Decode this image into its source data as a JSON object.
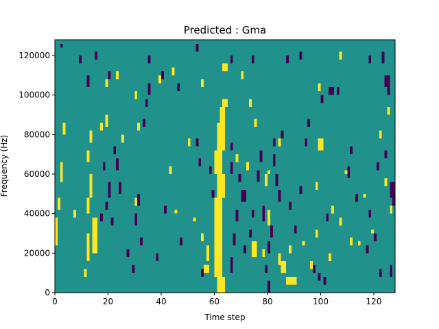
{
  "chart_data": {
    "type": "heatmap",
    "title": "Predicted : Gma",
    "xlabel": "Time step",
    "ylabel": "Frequency (Hz)",
    "xlim": [
      0,
      128
    ],
    "ylim": [
      0,
      128000
    ],
    "x_ticks": [
      0,
      20,
      40,
      60,
      80,
      100,
      120
    ],
    "x_tick_labels": [
      "0",
      "20",
      "40",
      "60",
      "80",
      "100",
      "120"
    ],
    "y_ticks": [
      0,
      20000,
      40000,
      60000,
      80000,
      100000,
      120000
    ],
    "y_tick_labels": [
      "0",
      "20000",
      "40000",
      "60000",
      "80000",
      "100000",
      "120000"
    ],
    "colormap": "viridis",
    "value_levels": [
      0,
      1,
      2
    ],
    "colors": {
      "low": "#440154",
      "mid": "#21918c",
      "high": "#fde725"
    },
    "background_level": 1,
    "cell_size": {
      "time_steps": 1,
      "frequency_hz": 2000
    },
    "grid": false,
    "legend": "none",
    "cells": {
      "high": [
        [
          61,
          0,
          64,
          8000
        ],
        [
          60,
          8000,
          63,
          48000
        ],
        [
          61,
          48000,
          64,
          60000
        ],
        [
          60,
          60000,
          63,
          72000
        ],
        [
          61,
          72000,
          64,
          86000
        ],
        [
          62,
          86000,
          64,
          94000
        ],
        [
          63,
          94000,
          65,
          98000
        ],
        [
          63,
          112000,
          65,
          116000
        ],
        [
          52,
          36000,
          53,
          38000
        ],
        [
          57,
          16000,
          58,
          24000
        ],
        [
          56,
          10000,
          58,
          14000
        ],
        [
          11,
          8000,
          12,
          12000
        ],
        [
          12,
          16000,
          13,
          30000
        ],
        [
          12,
          40000,
          13,
          48000
        ],
        [
          13,
          48000,
          14,
          60000
        ],
        [
          14,
          20000,
          16,
          38000
        ],
        [
          15,
          22000,
          16,
          34000
        ],
        [
          12,
          66000,
          13,
          72000
        ],
        [
          13,
          76000,
          14,
          82000
        ],
        [
          0,
          24000,
          1,
          38000
        ],
        [
          1,
          42000,
          2,
          48000
        ],
        [
          2,
          56000,
          3,
          66000
        ],
        [
          3,
          80000,
          4,
          86000
        ],
        [
          7,
          38000,
          8,
          42000
        ],
        [
          17,
          82000,
          18,
          86000
        ],
        [
          19,
          84000,
          20,
          90000
        ],
        [
          25,
          76000,
          26,
          80000
        ],
        [
          31,
          82000,
          32,
          86000
        ],
        [
          30,
          44000,
          31,
          48000
        ],
        [
          43,
          60000,
          44,
          64000
        ],
        [
          45,
          40000,
          46,
          42000
        ],
        [
          50,
          74000,
          51,
          78000
        ],
        [
          55,
          26000,
          56,
          30000
        ],
        [
          74,
          18000,
          76,
          26000
        ],
        [
          75,
          84000,
          76,
          88000
        ],
        [
          73,
          94000,
          74,
          98000
        ],
        [
          72,
          62000,
          73,
          66000
        ],
        [
          79,
          54000,
          80,
          60000
        ],
        [
          80,
          34000,
          81,
          42000
        ],
        [
          85,
          10000,
          87,
          16000
        ],
        [
          87,
          4000,
          91,
          8000
        ],
        [
          88,
          20000,
          89,
          24000
        ],
        [
          84,
          74000,
          85,
          78000
        ],
        [
          93,
          24000,
          94,
          26000
        ],
        [
          96,
          12000,
          97,
          16000
        ],
        [
          98,
          28000,
          99,
          32000
        ],
        [
          98,
          52000,
          99,
          56000
        ],
        [
          99,
          72000,
          101,
          78000
        ],
        [
          99,
          102000,
          100,
          106000
        ],
        [
          103,
          16000,
          104,
          20000
        ],
        [
          104,
          40000,
          105,
          44000
        ],
        [
          107,
          34000,
          108,
          38000
        ],
        [
          107,
          118000,
          108,
          122000
        ],
        [
          109,
          60000,
          110,
          62000
        ],
        [
          111,
          24000,
          112,
          28000
        ],
        [
          114,
          24000,
          115,
          26000
        ],
        [
          116,
          48000,
          117,
          50000
        ],
        [
          119,
          30000,
          120,
          32000
        ],
        [
          122,
          78000,
          123,
          82000
        ],
        [
          123,
          118000,
          124,
          122000
        ],
        [
          124,
          54000,
          125,
          58000
        ],
        [
          125,
          90000,
          126,
          94000
        ],
        [
          126,
          40000,
          127,
          44000
        ],
        [
          84,
          14000,
          85,
          20000
        ],
        [
          89,
          4000,
          90,
          6000
        ],
        [
          78,
          18000,
          79,
          22000
        ],
        [
          23,
          108000,
          24,
          112000
        ],
        [
          19,
          104000,
          20,
          108000
        ],
        [
          30,
          98000,
          31,
          102000
        ],
        [
          39,
          106000,
          40,
          110000
        ],
        [
          44,
          110000,
          45,
          114000
        ],
        [
          55,
          104000,
          56,
          108000
        ],
        [
          70,
          108000,
          71,
          112000
        ],
        [
          68,
          66000,
          69,
          70000
        ],
        [
          80,
          60000,
          81,
          62000
        ]
      ],
      "low": [
        [
          34,
          94000,
          35,
          98000
        ],
        [
          35,
          100000,
          36,
          106000
        ],
        [
          46,
          102000,
          47,
          106000
        ],
        [
          40,
          108000,
          41,
          112000
        ],
        [
          33,
          84000,
          34,
          88000
        ],
        [
          18,
          62000,
          19,
          66000
        ],
        [
          20,
          48000,
          21,
          56000
        ],
        [
          19,
          42000,
          20,
          46000
        ],
        [
          17,
          36000,
          18,
          40000
        ],
        [
          21,
          34000,
          22,
          38000
        ],
        [
          23,
          62000,
          24,
          68000
        ],
        [
          24,
          50000,
          25,
          56000
        ],
        [
          22,
          70000,
          23,
          74000
        ],
        [
          30,
          34000,
          31,
          40000
        ],
        [
          32,
          24000,
          33,
          28000
        ],
        [
          29,
          10000,
          30,
          14000
        ],
        [
          27,
          18000,
          28,
          22000
        ],
        [
          31,
          44000,
          32,
          50000
        ],
        [
          38,
          16000,
          39,
          20000
        ],
        [
          41,
          40000,
          42,
          44000
        ],
        [
          47,
          24000,
          48,
          28000
        ],
        [
          53,
          74000,
          54,
          78000
        ],
        [
          54,
          64000,
          55,
          68000
        ],
        [
          58,
          60000,
          59,
          64000
        ],
        [
          59,
          48000,
          60,
          52000
        ],
        [
          55,
          8000,
          56,
          12000
        ],
        [
          66,
          60000,
          67,
          66000
        ],
        [
          66,
          72000,
          67,
          76000
        ],
        [
          66,
          10000,
          67,
          18000
        ],
        [
          67,
          24000,
          68,
          30000
        ],
        [
          68,
          36000,
          69,
          42000
        ],
        [
          69,
          56000,
          70,
          60000
        ],
        [
          70,
          46000,
          72,
          52000
        ],
        [
          71,
          20000,
          72,
          24000
        ],
        [
          73,
          28000,
          74,
          32000
        ],
        [
          74,
          38000,
          75,
          42000
        ],
        [
          76,
          56000,
          77,
          62000
        ],
        [
          77,
          66000,
          78,
          72000
        ],
        [
          78,
          36000,
          79,
          44000
        ],
        [
          79,
          10000,
          80,
          14000
        ],
        [
          80,
          20000,
          81,
          26000
        ],
        [
          81,
          28000,
          82,
          34000
        ],
        [
          82,
          64000,
          83,
          70000
        ],
        [
          83,
          54000,
          84,
          60000
        ],
        [
          84,
          46000,
          85,
          52000
        ],
        [
          85,
          78000,
          86,
          82000
        ],
        [
          80,
          0,
          81,
          6000
        ],
        [
          82,
          74000,
          83,
          78000
        ],
        [
          88,
          42000,
          89,
          46000
        ],
        [
          90,
          30000,
          91,
          34000
        ],
        [
          92,
          50000,
          93,
          54000
        ],
        [
          94,
          74000,
          95,
          78000
        ],
        [
          95,
          84000,
          96,
          88000
        ],
        [
          97,
          10000,
          98,
          14000
        ],
        [
          99,
          6000,
          100,
          10000
        ],
        [
          101,
          4000,
          102,
          8000
        ],
        [
          102,
          36000,
          103,
          40000
        ],
        [
          103,
          100000,
          105,
          104000
        ],
        [
          106,
          100000,
          107,
          104000
        ],
        [
          100,
          96000,
          101,
          100000
        ],
        [
          110,
          58000,
          111,
          64000
        ],
        [
          111,
          70000,
          112,
          74000
        ],
        [
          113,
          46000,
          114,
          50000
        ],
        [
          117,
          20000,
          118,
          24000
        ],
        [
          118,
          38000,
          119,
          42000
        ],
        [
          120,
          26000,
          121,
          30000
        ],
        [
          121,
          62000,
          122,
          66000
        ],
        [
          122,
          8000,
          123,
          12000
        ],
        [
          124,
          68000,
          125,
          72000
        ],
        [
          124,
          104000,
          126,
          110000
        ],
        [
          126,
          48000,
          128,
          56000
        ],
        [
          125,
          100000,
          126,
          104000
        ],
        [
          126,
          8000,
          127,
          14000
        ],
        [
          127,
          44000,
          128,
          50000
        ],
        [
          118,
          116000,
          119,
          120000
        ],
        [
          123,
          116000,
          124,
          122000
        ],
        [
          92,
          118000,
          93,
          122000
        ],
        [
          87,
          116000,
          88,
          120000
        ],
        [
          74,
          116000,
          75,
          120000
        ],
        [
          66,
          116000,
          67,
          120000
        ],
        [
          53,
          122000,
          54,
          126000
        ],
        [
          35,
          116000,
          36,
          120000
        ],
        [
          15,
          118000,
          16,
          122000
        ],
        [
          2,
          124000,
          3,
          126000
        ],
        [
          9,
          116000,
          10,
          120000
        ],
        [
          12,
          104000,
          13,
          110000
        ],
        [
          20,
          108000,
          21,
          112000
        ]
      ]
    }
  }
}
